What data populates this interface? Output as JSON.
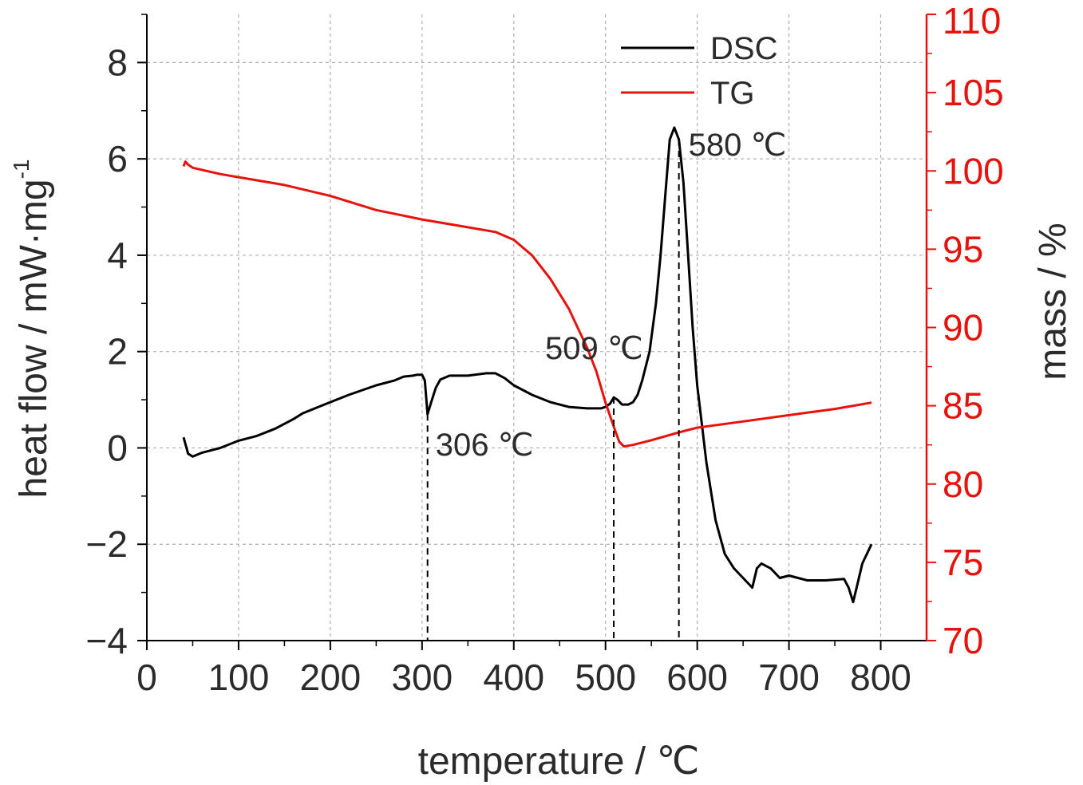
{
  "chart_data": {
    "type": "line",
    "xlabel": "temperature / ℃",
    "ylabel_left": "heat flow / mW·mg",
    "ylabel_left_sup": "-1",
    "ylabel_right": "mass / %",
    "xlim": [
      0,
      850
    ],
    "ylim_left": [
      -4,
      9
    ],
    "ylim_right": [
      70,
      110
    ],
    "x_ticks": [
      0,
      100,
      200,
      300,
      400,
      500,
      600,
      700,
      800
    ],
    "y_left_ticks": [
      -4,
      -2,
      0,
      2,
      4,
      6,
      8
    ],
    "y_left_tick_labels": [
      "−4",
      "−2",
      "0",
      "2",
      "4",
      "6",
      "8"
    ],
    "y_right_ticks": [
      70,
      75,
      80,
      85,
      90,
      95,
      100,
      105,
      110
    ],
    "grid": true,
    "legend_position": "top-right",
    "colors": {
      "DSC": "#000000",
      "TG": "#e8120c",
      "right_axis": "#e8120c",
      "grid": "#b0b0b0"
    },
    "series": [
      {
        "name": "DSC",
        "axis": "left",
        "x": [
          40,
          45,
          50,
          60,
          80,
          100,
          120,
          140,
          160,
          170,
          200,
          220,
          250,
          270,
          280,
          290,
          295,
          300,
          303,
          306,
          310,
          315,
          320,
          330,
          350,
          370,
          380,
          390,
          400,
          420,
          440,
          460,
          480,
          495,
          500,
          505,
          509,
          513,
          518,
          525,
          530,
          535,
          540,
          548,
          555,
          560,
          565,
          570,
          575,
          580,
          585,
          590,
          595,
          600,
          605,
          610,
          620,
          630,
          640,
          650,
          660,
          665,
          670,
          680,
          690,
          700,
          710,
          720,
          740,
          760,
          765,
          770,
          775,
          780,
          790
        ],
        "y": [
          0.22,
          -0.12,
          -0.18,
          -0.1,
          0.0,
          0.15,
          0.25,
          0.4,
          0.6,
          0.72,
          0.95,
          1.1,
          1.3,
          1.4,
          1.48,
          1.5,
          1.52,
          1.52,
          1.4,
          0.7,
          0.95,
          1.25,
          1.42,
          1.5,
          1.5,
          1.55,
          1.55,
          1.45,
          1.3,
          1.1,
          0.95,
          0.85,
          0.82,
          0.82,
          0.85,
          0.92,
          1.05,
          1.0,
          0.9,
          0.9,
          0.95,
          1.1,
          1.4,
          2.0,
          3.0,
          4.0,
          5.2,
          6.4,
          6.65,
          6.4,
          5.5,
          4.0,
          2.5,
          1.3,
          0.5,
          -0.3,
          -1.5,
          -2.2,
          -2.5,
          -2.7,
          -2.9,
          -2.5,
          -2.4,
          -2.5,
          -2.7,
          -2.65,
          -2.7,
          -2.75,
          -2.75,
          -2.72,
          -2.9,
          -3.2,
          -2.8,
          -2.4,
          -2.0
        ]
      },
      {
        "name": "TG",
        "axis": "right",
        "x": [
          40,
          42,
          45,
          50,
          80,
          100,
          150,
          200,
          250,
          300,
          350,
          380,
          400,
          420,
          440,
          460,
          480,
          490,
          500,
          510,
          515,
          520,
          530,
          550,
          580,
          600,
          650,
          700,
          750,
          790
        ],
        "y": [
          100.3,
          100.6,
          100.4,
          100.2,
          99.8,
          99.6,
          99.1,
          98.4,
          97.5,
          96.9,
          96.4,
          96.1,
          95.6,
          94.6,
          93.1,
          91.2,
          88.7,
          87.2,
          85.2,
          83.5,
          82.7,
          82.4,
          82.5,
          82.8,
          83.3,
          83.6,
          84.0,
          84.4,
          84.8,
          85.2
        ]
      }
    ],
    "annotations": [
      {
        "text": "306 ℃",
        "x": 306
      },
      {
        "text": "509 ℃",
        "x": 509
      },
      {
        "text": "580 ℃",
        "x": 580
      }
    ]
  }
}
